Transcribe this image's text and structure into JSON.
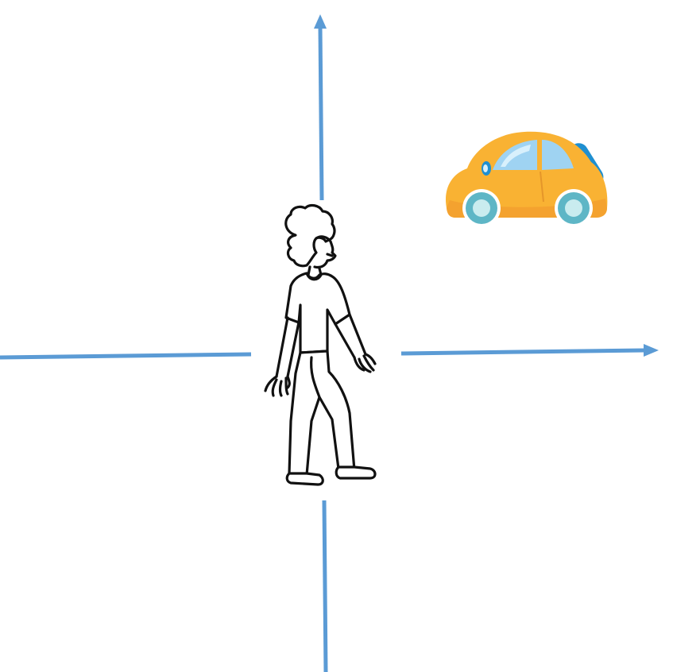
{
  "scene": {
    "figures": [
      {
        "name": "pedestrian",
        "icon": "person-walking-icon"
      },
      {
        "name": "car",
        "icon": "car-icon",
        "color": "#f9b233"
      }
    ],
    "axis_color": "#5b9bd5",
    "axes": [
      {
        "name": "up-arrow",
        "arrowhead": true
      },
      {
        "name": "right-arrow",
        "arrowhead": true
      },
      {
        "name": "down-line",
        "arrowhead": false
      },
      {
        "name": "left-line",
        "arrowhead": false
      }
    ]
  }
}
